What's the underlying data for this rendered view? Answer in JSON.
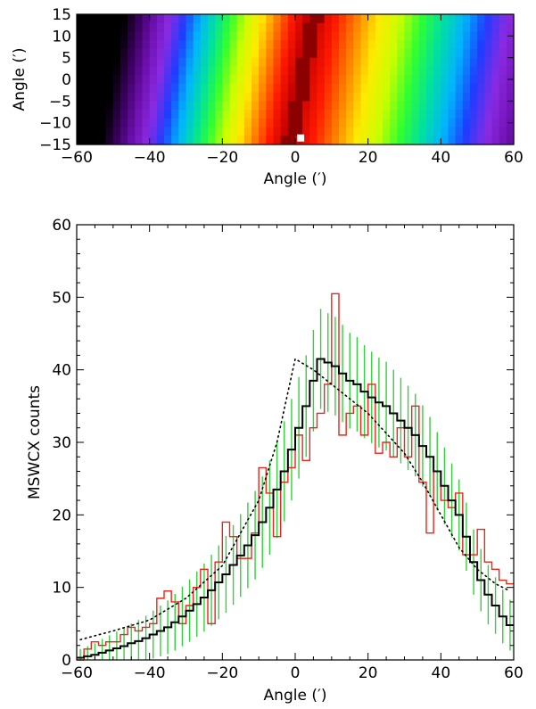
{
  "chart_data": [
    {
      "type": "heatmap",
      "xlabel": "Angle (′)",
      "ylabel": "Angle (′)",
      "xlim": [
        -60,
        60
      ],
      "ylim": [
        -15,
        15
      ],
      "xticks": [
        "−60",
        "−40",
        "−20",
        "0",
        "20",
        "40",
        "60"
      ],
      "yticks": [
        "15",
        "10",
        "5",
        "0",
        "−5",
        "−10",
        "−15"
      ],
      "grid": false,
      "colormap": "rainbow (black → purple → blue → cyan → green → yellow → red → dark red)",
      "colormap_stops": [
        "#000000",
        "#3b0060",
        "#6e10b0",
        "#8a2be2",
        "#1f3cff",
        "#00b4ff",
        "#00e0a0",
        "#30ff30",
        "#c8ff00",
        "#ffea00",
        "#ff8000",
        "#ff1800",
        "#c00000",
        "#7a0000"
      ],
      "ncols": 60,
      "nrows": 15,
      "note_point": {
        "x": 1.5,
        "y": -13.5,
        "color": "#ffffff"
      }
    },
    {
      "type": "line",
      "xlabel": "Angle (′)",
      "ylabel": "MSWCX counts",
      "xlim": [
        -60,
        60
      ],
      "ylim": [
        0,
        60
      ],
      "xticks": [
        "−60",
        "−40",
        "−20",
        "0",
        "20",
        "40",
        "60"
      ],
      "yticks": [
        "0",
        "10",
        "20",
        "30",
        "40",
        "50",
        "60"
      ],
      "grid": false,
      "bin_width": 2,
      "bin_start": -60,
      "series": [
        {
          "style": "step",
          "color": "#000000",
          "values": [
            0.3,
            0.5,
            0.7,
            1.0,
            1.3,
            1.6,
            1.9,
            2.3,
            2.6,
            3.0,
            3.5,
            4.0,
            4.5,
            5.2,
            6.0,
            6.8,
            7.7,
            8.6,
            9.6,
            10.7,
            11.8,
            13.1,
            14.4,
            15.8,
            17.2,
            19.0,
            21.0,
            23.5,
            26.0,
            29.0,
            32.0,
            35.0,
            38.5,
            41.5,
            41.0,
            40.5,
            39.5,
            38.5,
            38.0,
            37.0,
            36.2,
            35.5,
            35.0,
            34.0,
            33.0,
            32.0,
            31.0,
            29.5,
            28.0,
            26.0,
            24.0,
            22.0,
            20.0,
            17.0,
            13.5,
            11.0,
            9.0,
            7.5,
            6.0,
            4.8
          ]
        },
        {
          "style": "step",
          "color": "#e8261c",
          "values": [
            0.0,
            1.5,
            2.5,
            2.0,
            2.5,
            2.5,
            3.5,
            4.5,
            4.0,
            4.5,
            5.0,
            8.5,
            9.5,
            8.0,
            5.0,
            7.5,
            10.0,
            12.5,
            5.0,
            13.5,
            19.0,
            17.0,
            14.0,
            14.0,
            17.5,
            26.5,
            23.0,
            17.0,
            24.5,
            26.5,
            31.0,
            27.5,
            32.0,
            34.0,
            38.0,
            50.5,
            31.0,
            34.0,
            35.0,
            31.0,
            38.0,
            28.5,
            30.0,
            28.0,
            32.0,
            28.0,
            35.0,
            24.5,
            17.5,
            26.0,
            22.0,
            21.0,
            23.0,
            14.5,
            14.5,
            18.0,
            13.5,
            12.5,
            11.0,
            10.5
          ]
        },
        {
          "style": "error-bars",
          "color": "#33d13b",
          "values": [
            0.3,
            0.5,
            0.7,
            1.0,
            1.3,
            1.6,
            1.9,
            2.3,
            2.6,
            3.0,
            3.5,
            4.0,
            4.5,
            5.2,
            6.0,
            6.8,
            7.7,
            8.6,
            9.6,
            10.7,
            11.8,
            13.1,
            14.4,
            15.8,
            17.2,
            19.0,
            21.0,
            23.5,
            26.0,
            29.0,
            32.0,
            35.0,
            38.5,
            41.5,
            41.0,
            40.5,
            39.5,
            38.5,
            38.0,
            37.0,
            36.2,
            35.5,
            35.0,
            34.0,
            33.0,
            32.0,
            31.0,
            29.5,
            28.0,
            26.0,
            24.0,
            22.0,
            20.0,
            17.0,
            13.5,
            11.0,
            9.0,
            7.5,
            6.0,
            4.8
          ],
          "errors": [
            1.2,
            1.4,
            1.6,
            1.9,
            2.1,
            2.3,
            2.5,
            2.7,
            2.9,
            3.1,
            3.3,
            3.5,
            3.7,
            3.9,
            4.1,
            4.3,
            4.5,
            4.7,
            4.9,
            5.1,
            5.3,
            5.5,
            5.7,
            5.9,
            6.1,
            6.3,
            6.5,
            6.7,
            6.9,
            7.0,
            7.0,
            7.0,
            7.0,
            6.9,
            6.8,
            6.8,
            6.7,
            6.6,
            6.5,
            6.4,
            6.3,
            6.2,
            6.1,
            6.0,
            5.9,
            5.8,
            5.7,
            5.6,
            5.5,
            5.4,
            5.3,
            5.1,
            4.9,
            4.7,
            4.5,
            4.3,
            4.1,
            3.9,
            3.7,
            3.5
          ]
        },
        {
          "style": "dotted",
          "color": "#000000",
          "x": [
            -59,
            -50,
            -40,
            -30,
            -20,
            -10,
            -5,
            0,
            5,
            10,
            20,
            30,
            35,
            40,
            45,
            50,
            55,
            59
          ],
          "values": [
            2.8,
            4.0,
            5.5,
            8.5,
            13.0,
            22.0,
            30.0,
            41.5,
            40.0,
            38.0,
            34.0,
            28.5,
            24.5,
            20.0,
            15.5,
            12.5,
            10.5,
            9.5
          ]
        }
      ]
    }
  ]
}
